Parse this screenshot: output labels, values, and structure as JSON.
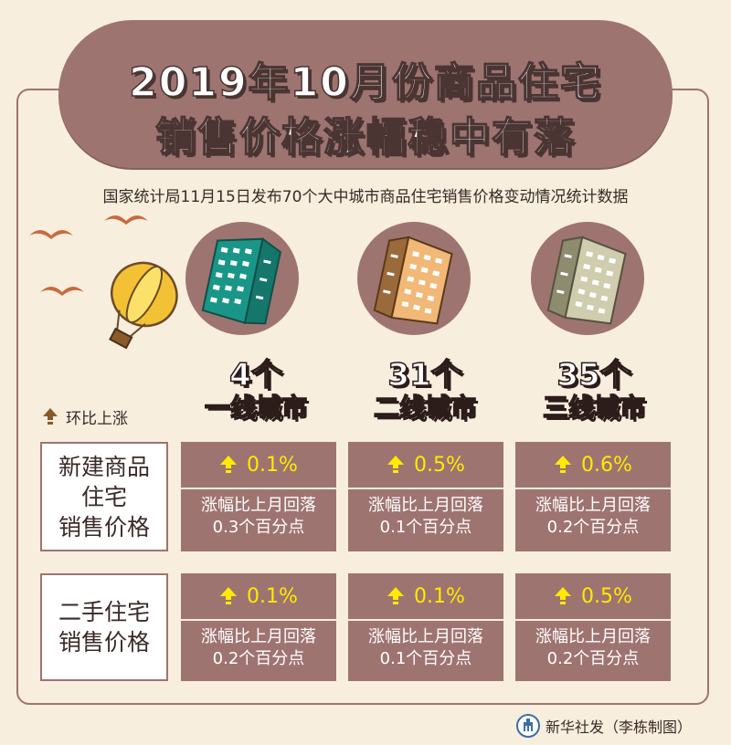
{
  "title": {
    "line1": "2019年10月份商品住宅",
    "line2": "销售价格涨幅稳中有落"
  },
  "subtitle": "国家统计局11月15日发布70个大中城市商品住宅销售价格变动情况统计数据",
  "legend": {
    "label": "环比上涨",
    "icon": "up-arrow-icon"
  },
  "tiers": [
    {
      "count": "4个",
      "name": "一线城市",
      "color": "#1a9688"
    },
    {
      "count": "31个",
      "name": "二线城市",
      "color": "#e0a05a"
    },
    {
      "count": "35个",
      "name": "三线城市",
      "color": "#c5c4a4"
    }
  ],
  "rows": [
    {
      "label_lines": [
        "新建商品",
        "住宅",
        "销售价格"
      ],
      "cells": [
        {
          "value": "0.1%",
          "note_line1": "涨幅比上月回落",
          "note_line2": "0.3个百分点"
        },
        {
          "value": "0.5%",
          "note_line1": "涨幅比上月回落",
          "note_line2": "0.1个百分点"
        },
        {
          "value": "0.6%",
          "note_line1": "涨幅比上月回落",
          "note_line2": "0.2个百分点"
        }
      ]
    },
    {
      "label_lines": [
        "二手住宅",
        "销售价格"
      ],
      "cells": [
        {
          "value": "0.1%",
          "note_line1": "涨幅比上月回落",
          "note_line2": "0.2个百分点"
        },
        {
          "value": "0.1%",
          "note_line1": "涨幅比上月回落",
          "note_line2": "0.1个百分点"
        },
        {
          "value": "0.5%",
          "note_line1": "涨幅比上月回落",
          "note_line2": "0.2个百分点"
        }
      ]
    }
  ],
  "footer": {
    "text": "新华社发（李栋制图）",
    "icon": "xinhua-logo-icon"
  },
  "colors": {
    "accent": "#9e7471",
    "background": "#f7eedd",
    "arrow": "#ffea00",
    "arrow_legend": "#8a5a2a"
  }
}
